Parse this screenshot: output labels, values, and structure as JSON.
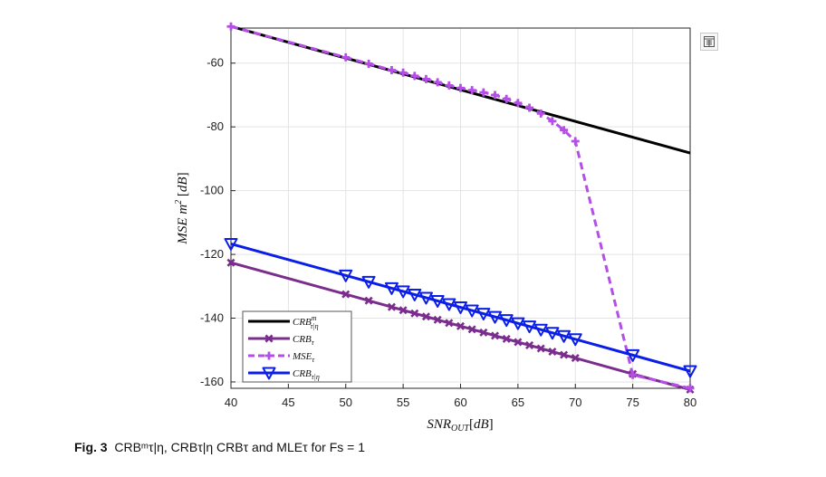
{
  "caption": {
    "label": "Fig. 3",
    "text": "CRBᵐτ|η, CRBτ|η CRBτ and MLEτ for Fs = 1"
  },
  "toolbar": {
    "icon": "save-figure-icon"
  },
  "chart_data": {
    "type": "line",
    "title": "",
    "xlabel": "SNR_OUT[dB]",
    "ylabel": "MSE m²[dB]",
    "xlim": [
      40,
      80
    ],
    "ylim": [
      -162,
      -49
    ],
    "x_ticks": [
      40,
      45,
      50,
      55,
      60,
      65,
      70,
      75,
      80
    ],
    "y_ticks": [
      -60,
      -80,
      -100,
      -120,
      -140,
      -160
    ],
    "grid": true,
    "legend_position": "bottom-left",
    "series": [
      {
        "name": "CRB^m_τ|η",
        "color": "#000000",
        "style": "solid",
        "marker": "none",
        "x": [
          40,
          80
        ],
        "y": [
          -48.5,
          -88.2
        ]
      },
      {
        "name": "CRB_τ",
        "color": "#7b2d8e",
        "style": "solid",
        "marker": "x",
        "x": [
          40,
          50,
          52,
          54,
          55,
          56,
          57,
          58,
          59,
          60,
          61,
          62,
          63,
          64,
          65,
          66,
          67,
          68,
          69,
          70,
          75,
          80
        ],
        "y": [
          -122.6,
          -132.5,
          -134.5,
          -136.5,
          -137.5,
          -138.5,
          -139.5,
          -140.5,
          -141.5,
          -142.5,
          -143.5,
          -144.5,
          -145.5,
          -146.5,
          -147.5,
          -148.5,
          -149.5,
          -150.5,
          -151.5,
          -152.5,
          -157.5,
          -162.4
        ]
      },
      {
        "name": "MSE_τ",
        "color": "#b44ee6",
        "style": "dashed",
        "marker": "+",
        "x": [
          40,
          50,
          52,
          54,
          55,
          56,
          57,
          58,
          59,
          60,
          61,
          62,
          63,
          64,
          65,
          66,
          67,
          68,
          69,
          70,
          75,
          80
        ],
        "y": [
          -48.5,
          -58.2,
          -60.2,
          -62.2,
          -63.0,
          -64.0,
          -65.0,
          -66.0,
          -67.0,
          -67.8,
          -68.5,
          -69.2,
          -70.0,
          -71.2,
          -72.5,
          -74.0,
          -75.8,
          -78.2,
          -81.0,
          -84.5,
          -157.8,
          -162.0
        ]
      },
      {
        "name": "CRB_τ|η",
        "color": "#0a1ee8",
        "style": "solid",
        "marker": "triangle-down",
        "x": [
          40,
          50,
          52,
          54,
          55,
          56,
          57,
          58,
          59,
          60,
          61,
          62,
          63,
          64,
          65,
          66,
          67,
          68,
          69,
          70,
          75,
          80
        ],
        "y": [
          -116.7,
          -126.6,
          -128.6,
          -130.6,
          -131.6,
          -132.6,
          -133.6,
          -134.6,
          -135.6,
          -136.6,
          -137.6,
          -138.6,
          -139.6,
          -140.6,
          -141.6,
          -142.6,
          -143.6,
          -144.6,
          -145.6,
          -146.6,
          -151.6,
          -156.6
        ]
      }
    ]
  }
}
